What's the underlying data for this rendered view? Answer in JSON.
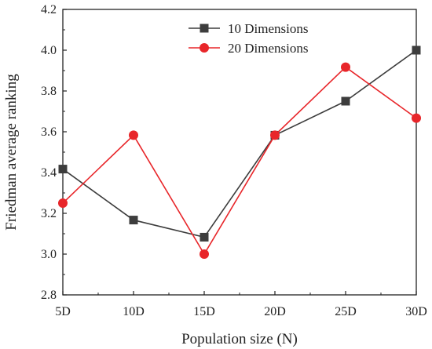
{
  "chart_data": {
    "type": "line",
    "xlabel": "Population size (N)",
    "ylabel": "Friedman average ranking",
    "categories": [
      "5D",
      "10D",
      "15D",
      "20D",
      "25D",
      "30D"
    ],
    "yticks": [
      "2.8",
      "3.0",
      "3.2",
      "3.4",
      "3.6",
      "3.8",
      "4.0",
      "4.2"
    ],
    "ylim": [
      2.8,
      4.2
    ],
    "grid": false,
    "legend_position": "top-center",
    "series": [
      {
        "name": "10 Dimensions",
        "marker": "square",
        "color": "#3d3d3d",
        "values": [
          3.417,
          3.167,
          3.083,
          3.583,
          3.75,
          4.0
        ]
      },
      {
        "name": "20 Dimensions",
        "marker": "circle",
        "color": "#e8262a",
        "values": [
          3.25,
          3.583,
          3.0,
          3.583,
          3.917,
          3.667
        ]
      }
    ]
  }
}
